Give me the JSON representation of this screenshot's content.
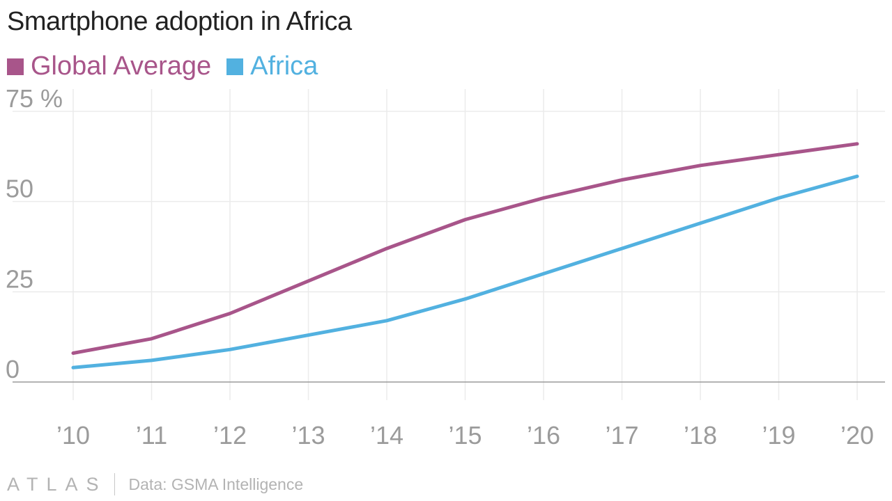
{
  "footer": {
    "brand": "ATLAS",
    "source": "Data: GSMA Intelligence"
  },
  "chart_data": {
    "type": "line",
    "title": "Smartphone adoption in Africa",
    "xlabel": "",
    "ylabel": "",
    "x": [
      "’10",
      "’11",
      "’12",
      "’13",
      "’14",
      "’15",
      "’16",
      "’17",
      "’18",
      "’19",
      "’20"
    ],
    "series": [
      {
        "name": "Global Average",
        "color": "#a8558a",
        "values": [
          8,
          12,
          19,
          28,
          37,
          45,
          51,
          56,
          60,
          63,
          66
        ]
      },
      {
        "name": "Africa",
        "color": "#52b1e0",
        "values": [
          4,
          6,
          9,
          13,
          17,
          23,
          30,
          37,
          44,
          51,
          57
        ]
      }
    ],
    "y_ticks": [
      0,
      25,
      50,
      75
    ],
    "y_tick_labels": [
      "0",
      "25",
      "50",
      "75 %"
    ],
    "ylim": [
      0,
      75
    ],
    "grid": true,
    "legend_position": "top-left"
  }
}
